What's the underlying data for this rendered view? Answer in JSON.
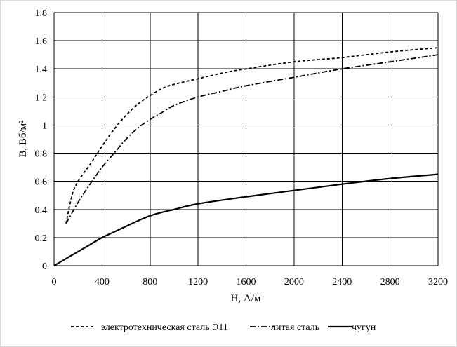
{
  "chart_data": {
    "type": "line",
    "xlabel": "H, А/м",
    "ylabel": "B, Вб/м²",
    "xlim": [
      0,
      3200
    ],
    "ylim": [
      0,
      1.8
    ],
    "x_ticks": [
      "0",
      "400",
      "800",
      "1200",
      "1600",
      "2000",
      "2400",
      "2800",
      "3200"
    ],
    "y_ticks": [
      "0",
      "0.2",
      "0.4",
      "0.6",
      "0.8",
      "1",
      "1.2",
      "1.4",
      "1.6",
      "1.8"
    ],
    "grid": true,
    "legend_position": "bottom",
    "series": [
      {
        "name": "электротехническая сталь Э11",
        "style": "dashed",
        "color": "#000000",
        "x": [
          100,
          150,
          200,
          300,
          400,
          500,
          600,
          700,
          800,
          900,
          1000,
          1200,
          1400,
          1600,
          2000,
          2400,
          2800,
          3200
        ],
        "y": [
          0.3,
          0.5,
          0.6,
          0.72,
          0.85,
          0.97,
          1.07,
          1.15,
          1.21,
          1.26,
          1.29,
          1.33,
          1.37,
          1.4,
          1.45,
          1.48,
          1.52,
          1.55
        ]
      },
      {
        "name": "литая сталь",
        "style": "dashdot",
        "color": "#000000",
        "x": [
          100,
          200,
          300,
          400,
          500,
          600,
          700,
          800,
          900,
          1000,
          1200,
          1400,
          1600,
          2000,
          2400,
          2800,
          3200
        ],
        "y": [
          0.3,
          0.45,
          0.58,
          0.7,
          0.8,
          0.9,
          0.98,
          1.04,
          1.09,
          1.14,
          1.2,
          1.24,
          1.28,
          1.34,
          1.4,
          1.45,
          1.5
        ]
      },
      {
        "name": "чугун",
        "style": "solid",
        "color": "#000000",
        "x": [
          0,
          100,
          200,
          300,
          400,
          500,
          600,
          700,
          800,
          900,
          1000,
          1200,
          1600,
          2000,
          2400,
          2800,
          3200
        ],
        "y": [
          0,
          0.05,
          0.1,
          0.15,
          0.2,
          0.24,
          0.28,
          0.32,
          0.355,
          0.38,
          0.4,
          0.44,
          0.49,
          0.535,
          0.58,
          0.62,
          0.65
        ]
      }
    ]
  }
}
